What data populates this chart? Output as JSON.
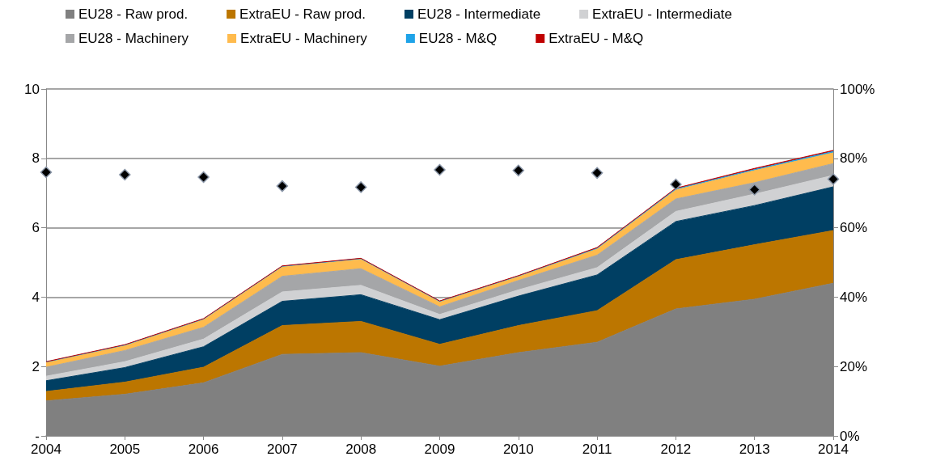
{
  "chart_data": {
    "type": "area",
    "stacked": true,
    "categories": [
      "2004",
      "2005",
      "2006",
      "2007",
      "2008",
      "2009",
      "2010",
      "2011",
      "2012",
      "2013",
      "2014"
    ],
    "series": [
      {
        "name": "EU28 - Raw prod.",
        "color": "#808080",
        "values": [
          1.01,
          1.2,
          1.53,
          2.35,
          2.4,
          2.01,
          2.4,
          2.7,
          3.66,
          3.94,
          4.4
        ]
      },
      {
        "name": "ExtraEU - Raw prod.",
        "color": "#bc7600",
        "values": [
          0.27,
          0.35,
          0.45,
          0.83,
          0.9,
          0.63,
          0.78,
          0.91,
          1.42,
          1.57,
          1.52
        ]
      },
      {
        "name": "EU28 - Intermediate",
        "color": "#003f63",
        "values": [
          0.31,
          0.42,
          0.59,
          0.7,
          0.77,
          0.71,
          0.85,
          1.03,
          1.1,
          1.13,
          1.26
        ]
      },
      {
        "name": "ExtraEU - Intermediate",
        "color": "#d0d1d3",
        "values": [
          0.13,
          0.17,
          0.22,
          0.27,
          0.27,
          0.15,
          0.18,
          0.21,
          0.29,
          0.33,
          0.33
        ]
      },
      {
        "name": "EU28 - Machinery",
        "color": "#a5a6a8",
        "values": [
          0.26,
          0.32,
          0.34,
          0.45,
          0.48,
          0.22,
          0.27,
          0.36,
          0.36,
          0.33,
          0.34
        ]
      },
      {
        "name": "ExtraEU - Machinery",
        "color": "#ffbb4d",
        "values": [
          0.14,
          0.14,
          0.22,
          0.27,
          0.27,
          0.14,
          0.11,
          0.18,
          0.26,
          0.35,
          0.31
        ]
      },
      {
        "name": "EU28 - M&Q",
        "color": "#1fa3e8",
        "values": [
          0.01,
          0.02,
          0.02,
          0.02,
          0.02,
          0.02,
          0.02,
          0.02,
          0.03,
          0.03,
          0.04
        ]
      },
      {
        "name": "ExtraEU - M&Q",
        "color": "#c00000",
        "values": [
          0.01,
          0.01,
          0.01,
          0.01,
          0.01,
          0.01,
          0.01,
          0.02,
          0.02,
          0.03,
          0.03
        ]
      },
      {
        "type": "scatter",
        "axis": "y2",
        "marker": "diamond",
        "color": "#000000",
        "values": [
          76.0,
          75.3,
          74.6,
          72.0,
          71.7,
          76.7,
          76.5,
          75.8,
          72.5,
          71.0,
          74.0
        ]
      }
    ],
    "ylim": [
      0,
      10
    ],
    "yticks": [
      {
        "value": 0,
        "label": "-"
      },
      2,
      4,
      6,
      8,
      10
    ],
    "y2lim": [
      0,
      100
    ],
    "y2ticks": [
      {
        "value": 0,
        "label": "0%"
      },
      {
        "value": 20,
        "label": "20%"
      },
      {
        "value": 40,
        "label": "40%"
      },
      {
        "value": 60,
        "label": "60%"
      },
      {
        "value": 80,
        "label": "80%"
      },
      {
        "value": 100,
        "label": "100%"
      }
    ],
    "grid": "y",
    "legend": "top"
  }
}
